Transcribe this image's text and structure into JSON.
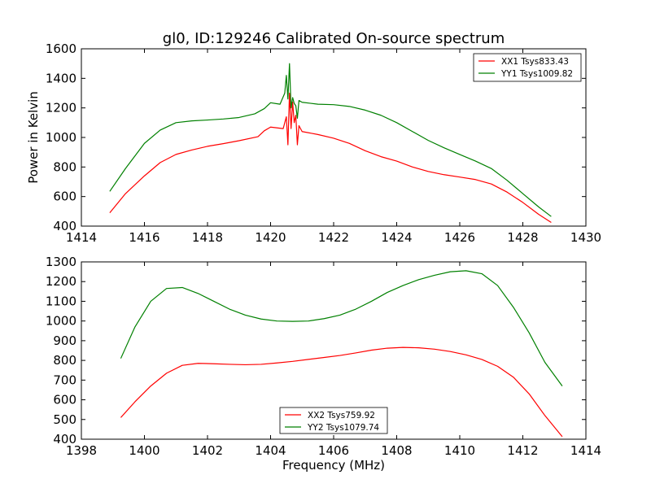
{
  "chart_data": [
    {
      "type": "line",
      "title": "gl0, ID:129246 Calibrated On-source spectrum",
      "xlabel": "",
      "ylabel": "Power in Kelvin",
      "xlim": [
        1414,
        1430
      ],
      "ylim": [
        400,
        1600
      ],
      "xticks": [
        "1414",
        "1416",
        "1418",
        "1420",
        "1422",
        "1424",
        "1426",
        "1428",
        "1430"
      ],
      "yticks": [
        "400",
        "600",
        "800",
        "1000",
        "1200",
        "1400",
        "1600"
      ],
      "legend_position": "top-right",
      "series": [
        {
          "name": "XX1 Tsys833.43",
          "color": "#ff0000",
          "x": [
            1414.9,
            1415.4,
            1416.0,
            1416.5,
            1417.0,
            1417.5,
            1418.0,
            1418.5,
            1419.0,
            1419.6,
            1419.8,
            1420.0,
            1420.4,
            1420.5,
            1420.55,
            1420.6,
            1420.65,
            1420.7,
            1420.75,
            1420.8,
            1420.85,
            1420.9,
            1421.0,
            1421.5,
            1422.0,
            1422.5,
            1423.0,
            1423.5,
            1424.0,
            1424.5,
            1425.0,
            1425.5,
            1426.0,
            1426.5,
            1427.0,
            1427.5,
            1428.0,
            1428.5,
            1428.9
          ],
          "values": [
            490,
            620,
            740,
            830,
            885,
            915,
            940,
            958,
            978,
            1005,
            1045,
            1070,
            1060,
            1140,
            950,
            1300,
            1060,
            1240,
            1100,
            1150,
            950,
            1080,
            1040,
            1020,
            995,
            960,
            910,
            870,
            840,
            800,
            770,
            748,
            732,
            715,
            685,
            630,
            560,
            480,
            425
          ]
        },
        {
          "name": "YY1 Tsys1009.82",
          "color": "#008000",
          "x": [
            1414.9,
            1415.4,
            1416.0,
            1416.5,
            1417.0,
            1417.5,
            1418.0,
            1418.5,
            1419.0,
            1419.5,
            1419.8,
            1420.0,
            1420.3,
            1420.45,
            1420.5,
            1420.55,
            1420.6,
            1420.65,
            1420.7,
            1420.75,
            1420.8,
            1420.85,
            1420.9,
            1421.0,
            1421.5,
            1422.0,
            1422.5,
            1423.0,
            1423.5,
            1424.0,
            1424.5,
            1425.0,
            1425.5,
            1426.0,
            1426.5,
            1427.0,
            1427.5,
            1428.0,
            1428.5,
            1428.9
          ],
          "values": [
            635,
            790,
            960,
            1050,
            1100,
            1112,
            1118,
            1125,
            1135,
            1160,
            1195,
            1235,
            1225,
            1300,
            1420,
            1260,
            1500,
            1200,
            1270,
            1230,
            1215,
            1130,
            1250,
            1238,
            1225,
            1222,
            1210,
            1185,
            1150,
            1100,
            1040,
            980,
            930,
            885,
            840,
            790,
            710,
            620,
            530,
            465
          ]
        }
      ]
    },
    {
      "type": "line",
      "title": "",
      "xlabel": "Frequency (MHz)",
      "ylabel": "",
      "xlim": [
        1398,
        1414
      ],
      "ylim": [
        400,
        1300
      ],
      "xticks": [
        "1398",
        "1400",
        "1402",
        "1404",
        "1406",
        "1408",
        "1410",
        "1412",
        "1414"
      ],
      "yticks": [
        "400",
        "500",
        "600",
        "700",
        "800",
        "900",
        "1000",
        "1100",
        "1200",
        "1300"
      ],
      "legend_position": "bottom-center",
      "series": [
        {
          "name": "XX2 Tsys759.92",
          "color": "#ff0000",
          "x": [
            1399.25,
            1399.7,
            1400.2,
            1400.7,
            1401.2,
            1401.7,
            1402.2,
            1402.7,
            1403.2,
            1403.7,
            1404.2,
            1404.7,
            1405.2,
            1405.7,
            1406.2,
            1406.7,
            1407.2,
            1407.7,
            1408.2,
            1408.7,
            1409.2,
            1409.7,
            1410.2,
            1410.7,
            1411.2,
            1411.7,
            1412.2,
            1412.7,
            1413.25
          ],
          "values": [
            510,
            590,
            670,
            735,
            775,
            785,
            783,
            780,
            778,
            780,
            787,
            795,
            805,
            815,
            825,
            838,
            852,
            862,
            866,
            864,
            857,
            845,
            828,
            805,
            770,
            715,
            630,
            520,
            413
          ]
        },
        {
          "name": "YY2 Tsys1079.74",
          "color": "#008000",
          "x": [
            1399.25,
            1399.7,
            1400.2,
            1400.7,
            1401.2,
            1401.7,
            1402.2,
            1402.7,
            1403.2,
            1403.7,
            1404.2,
            1404.7,
            1405.2,
            1405.7,
            1406.2,
            1406.7,
            1407.2,
            1407.7,
            1408.2,
            1408.7,
            1409.2,
            1409.7,
            1410.2,
            1410.7,
            1411.2,
            1411.7,
            1412.2,
            1412.7,
            1413.25
          ],
          "values": [
            810,
            970,
            1100,
            1165,
            1170,
            1140,
            1100,
            1060,
            1030,
            1010,
            1000,
            998,
            1000,
            1012,
            1030,
            1060,
            1100,
            1145,
            1180,
            1210,
            1232,
            1250,
            1255,
            1240,
            1180,
            1070,
            940,
            790,
            670
          ]
        }
      ]
    }
  ]
}
